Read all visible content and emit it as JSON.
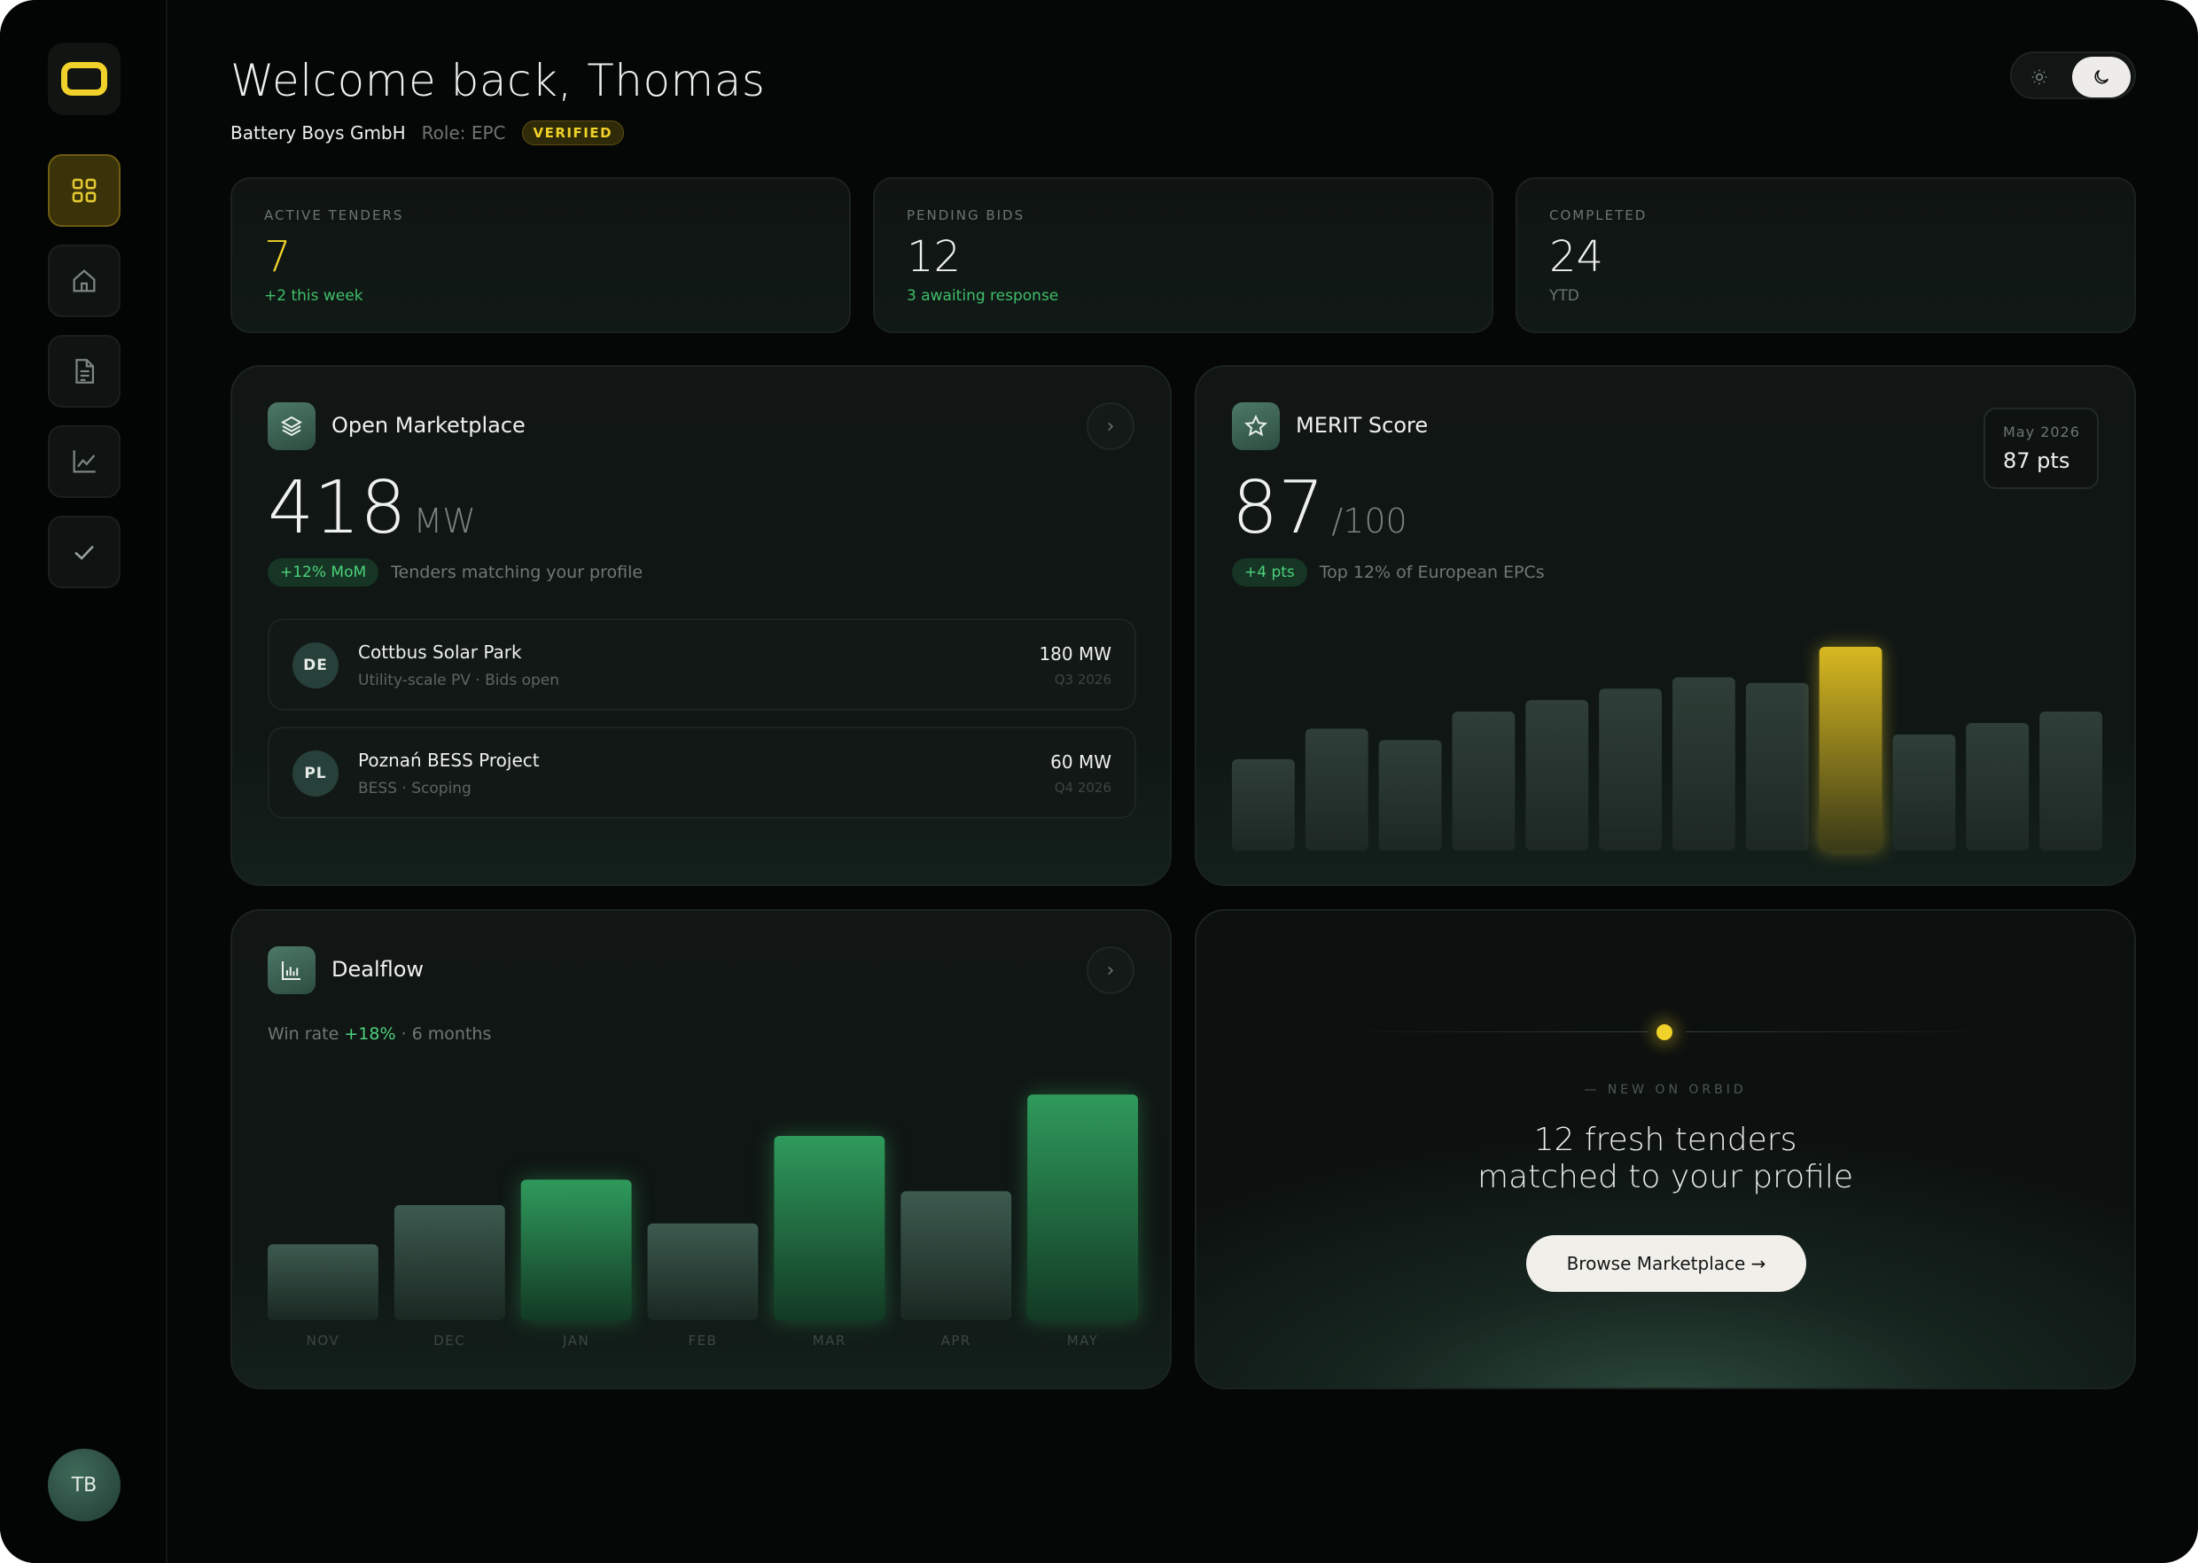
{
  "sidebar": {
    "logo": "logo-icon",
    "items": [
      {
        "icon": "grid-icon",
        "active": true
      },
      {
        "icon": "home-icon",
        "active": false
      },
      {
        "icon": "document-icon",
        "active": false
      },
      {
        "icon": "chart-line-icon",
        "active": false
      },
      {
        "icon": "check-icon",
        "active": false
      }
    ],
    "avatar_initials": "TB"
  },
  "header": {
    "title": "Welcome back, Thomas",
    "company": "Battery Boys GmbH",
    "role": "Role: EPC",
    "badge": "VERIFIED"
  },
  "stats": [
    {
      "label": "ACTIVE TENDERS",
      "value": "7",
      "sub": "+2 this week"
    },
    {
      "label": "PENDING BIDS",
      "value": "12",
      "sub": "3 awaiting response"
    },
    {
      "label": "COMPLETED",
      "value": "24",
      "sub": "YTD"
    }
  ],
  "marketplace": {
    "title": "Open Marketplace",
    "value": "418",
    "unit": "MW",
    "pill": "+12% MoM",
    "caption": "Tenders matching your profile",
    "tenders": [
      {
        "flag": "DE",
        "name": "Cottbus Solar Park",
        "meta": "Utility-scale PV · Bids open",
        "mw": "180 MW",
        "quarter": "Q3 2026"
      },
      {
        "flag": "PL",
        "name": "Poznań BESS Project",
        "meta": "BESS · Scoping",
        "mw": "60 MW",
        "quarter": "Q4 2026"
      }
    ]
  },
  "merit": {
    "title": "MERIT Score",
    "value": "87",
    "unit": "/100",
    "pill": "+4 pts",
    "caption": "Top 12% of European EPCs",
    "badge_label": "May 2026",
    "badge_value": "87 pts"
  },
  "dealflow": {
    "title": "Dealflow",
    "caption_prefix": "Win rate",
    "caption_value": "+18%",
    "caption_suffix": "· 6 months"
  },
  "promo": {
    "kicker": "— NEW ON ORBID",
    "headline_line1": "12 fresh tenders",
    "headline_line2": "matched to your profile",
    "button": "Browse Marketplace →"
  },
  "colors": {
    "accent_yellow": "#f0d22a",
    "positive_green": "#3fbf6a",
    "background": "#050606"
  },
  "chart_data": [
    {
      "type": "bar",
      "values": [
        48,
        64,
        58,
        73,
        79,
        85,
        91,
        88,
        107,
        61,
        67,
        73
      ],
      "highlight_index": 8
    },
    {
      "type": "bar",
      "categories": [
        "NOV",
        "DEC",
        "JAN",
        "FEB",
        "MAR",
        "APR",
        "MAY"
      ],
      "values": [
        33,
        50,
        61,
        42,
        80,
        56,
        98
      ],
      "highlighted": [
        false,
        false,
        true,
        false,
        true,
        false,
        true
      ]
    }
  ]
}
